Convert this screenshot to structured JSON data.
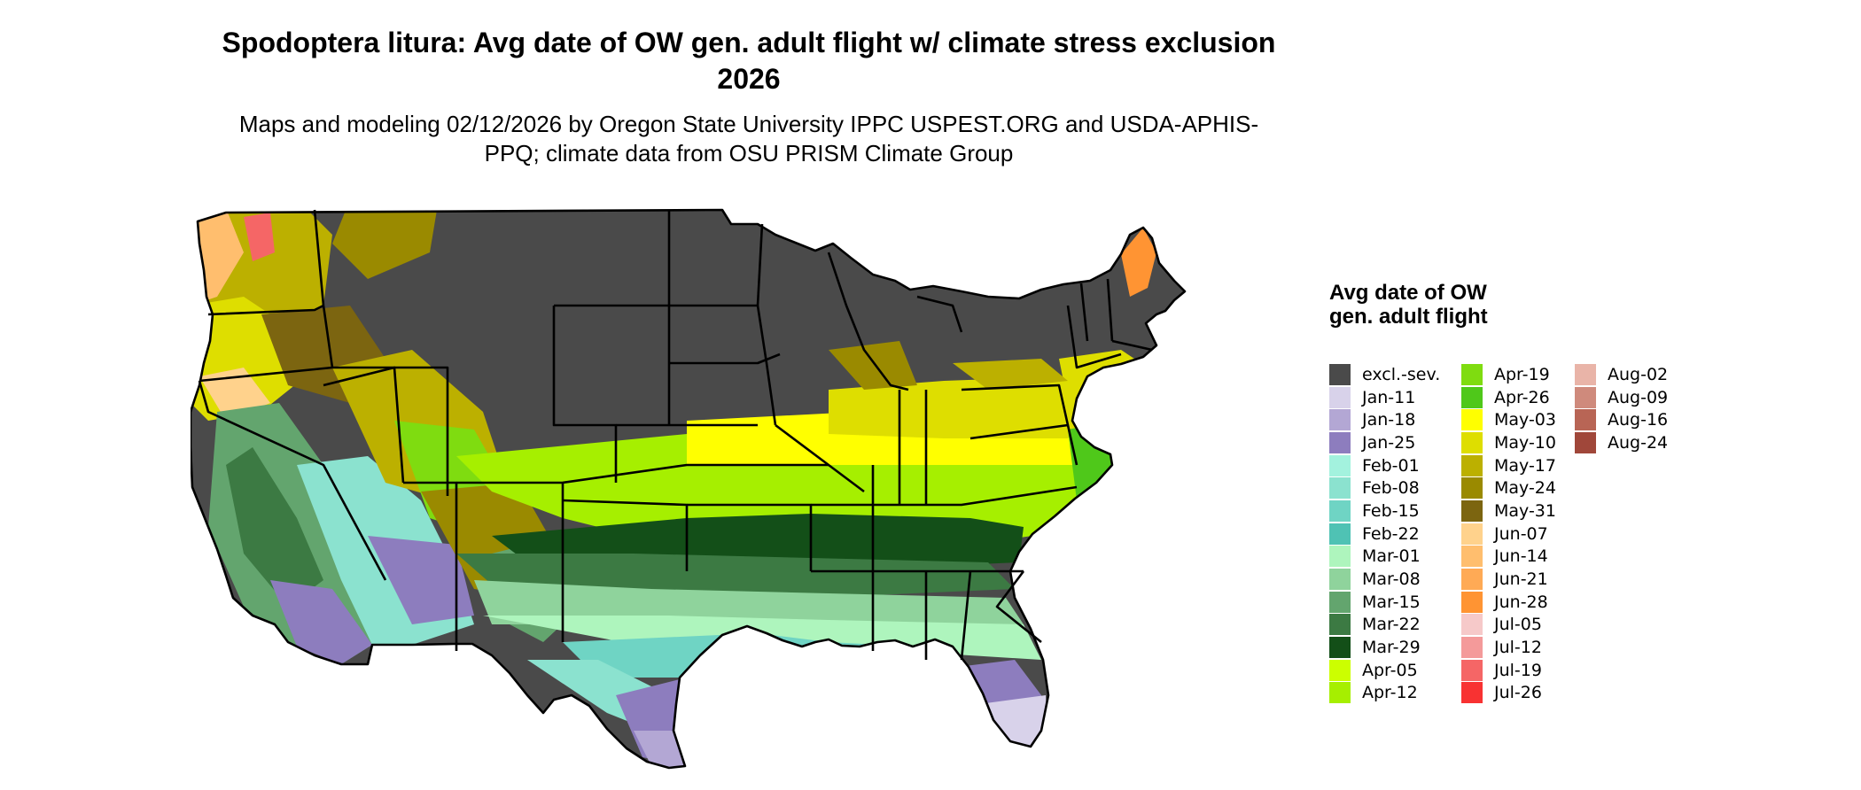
{
  "title": "Spodoptera litura: Avg date of OW gen. adult flight w/ climate stress exclusion 2026",
  "subtitle": "Maps and modeling 02/12/2026 by Oregon State University IPPC USPEST.ORG and USDA-APHIS-PPQ; climate data from OSU PRISM Climate Group",
  "legend": {
    "title": "Avg date of OW gen. adult flight",
    "items": [
      {
        "label": "excl.-sev.",
        "color": "#4a4a4a"
      },
      {
        "label": "Jan-11",
        "color": "#d8d2ea"
      },
      {
        "label": "Jan-18",
        "color": "#b3a7d4"
      },
      {
        "label": "Jan-25",
        "color": "#8d7dbe"
      },
      {
        "label": "Feb-01",
        "color": "#a3f2de"
      },
      {
        "label": "Feb-08",
        "color": "#8be2cf"
      },
      {
        "label": "Feb-15",
        "color": "#6fd4c4"
      },
      {
        "label": "Feb-22",
        "color": "#4fc2b4"
      },
      {
        "label": "Mar-01",
        "color": "#aef5bd"
      },
      {
        "label": "Mar-08",
        "color": "#8fd39c"
      },
      {
        "label": "Mar-15",
        "color": "#63a56e"
      },
      {
        "label": "Mar-22",
        "color": "#3c7a43"
      },
      {
        "label": "Mar-29",
        "color": "#134f18"
      },
      {
        "label": "Apr-05",
        "color": "#ccff00"
      },
      {
        "label": "Apr-12",
        "color": "#a6ef00"
      },
      {
        "label": "Apr-19",
        "color": "#7fdc10"
      },
      {
        "label": "Apr-26",
        "color": "#4fc81a"
      },
      {
        "label": "May-03",
        "color": "#ffff00"
      },
      {
        "label": "May-10",
        "color": "#dede00"
      },
      {
        "label": "May-17",
        "color": "#bcb000"
      },
      {
        "label": "May-24",
        "color": "#9a8a00"
      },
      {
        "label": "May-31",
        "color": "#7c6510"
      },
      {
        "label": "Jun-07",
        "color": "#ffd28c"
      },
      {
        "label": "Jun-14",
        "color": "#ffbe6e"
      },
      {
        "label": "Jun-21",
        "color": "#ffaa55"
      },
      {
        "label": "Jun-28",
        "color": "#ff9433"
      },
      {
        "label": "Jul-05",
        "color": "#f6c9c9"
      },
      {
        "label": "Jul-12",
        "color": "#f49a9a"
      },
      {
        "label": "Jul-19",
        "color": "#f56666"
      },
      {
        "label": "Jul-26",
        "color": "#f83232"
      },
      {
        "label": "Aug-02",
        "color": "#e9b4a8"
      },
      {
        "label": "Aug-09",
        "color": "#cf8a7c"
      },
      {
        "label": "Aug-16",
        "color": "#b86555"
      },
      {
        "label": "Aug-24",
        "color": "#a0473a"
      }
    ]
  }
}
